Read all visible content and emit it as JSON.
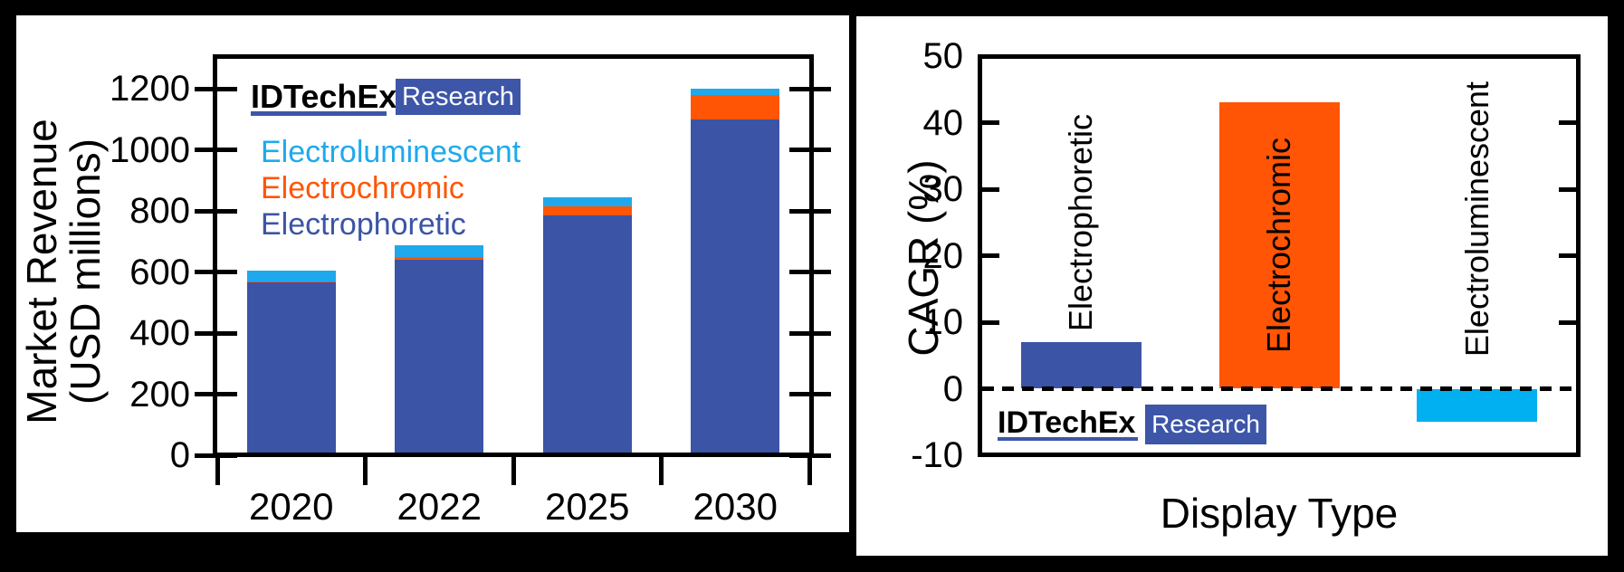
{
  "figure": {
    "logo": {
      "brand": "IDTechEx",
      "suffix": "Research"
    }
  },
  "colors": {
    "electrophoretic": "#3B54A5",
    "electrochromic": "#FF5505",
    "electroluminescent": "#1FA9EC",
    "electroluminescent_cagr_bar": "#00B0F0",
    "badge_background": "#3D56A8",
    "brand_underline": "#3D56A8",
    "axis": "#000000",
    "panel_background": "#ffffff",
    "page_background": "#000000"
  },
  "chart_data": [
    {
      "id": "market-revenue",
      "type": "bar",
      "stacked": true,
      "ylabel": "Market Revenue (USD millions)",
      "ylabel_lines": [
        "Market Revenue",
        "(USD millions)"
      ],
      "xlabel": "",
      "ylim": [
        0,
        1300
      ],
      "yticks": [
        0,
        200,
        400,
        600,
        800,
        1000,
        1200
      ],
      "grid": false,
      "categories": [
        "2020",
        "2022",
        "2025",
        "2030"
      ],
      "series": [
        {
          "name": "Electrophoretic",
          "color": "#3B54A5",
          "values": [
            565,
            640,
            785,
            1100
          ]
        },
        {
          "name": "Electrochromic",
          "color": "#FF5505",
          "values": [
            5,
            8,
            30,
            80
          ]
        },
        {
          "name": "Electroluminescent",
          "color": "#1FA9EC",
          "values": [
            35,
            40,
            30,
            20
          ]
        }
      ],
      "totals": [
        605,
        688,
        845,
        1200
      ],
      "legend_order": [
        "Electroluminescent",
        "Electrochromic",
        "Electrophoretic"
      ],
      "legend_position": "upper-left-inside"
    },
    {
      "id": "cagr-by-display-type",
      "type": "bar",
      "stacked": false,
      "ylabel": "CAGR (%)",
      "xlabel": "Display Type",
      "ylim": [
        -10,
        50
      ],
      "yticks": [
        50,
        40,
        30,
        20,
        10,
        0,
        -10
      ],
      "grid": false,
      "zero_line": "dashed",
      "categories": [
        "Electrophoretic",
        "Electrochromic",
        "Electroluminescent"
      ],
      "values": [
        7,
        43,
        -5
      ],
      "bar_colors": [
        "#3B54A5",
        "#FF5505",
        "#00B0F0"
      ]
    }
  ]
}
